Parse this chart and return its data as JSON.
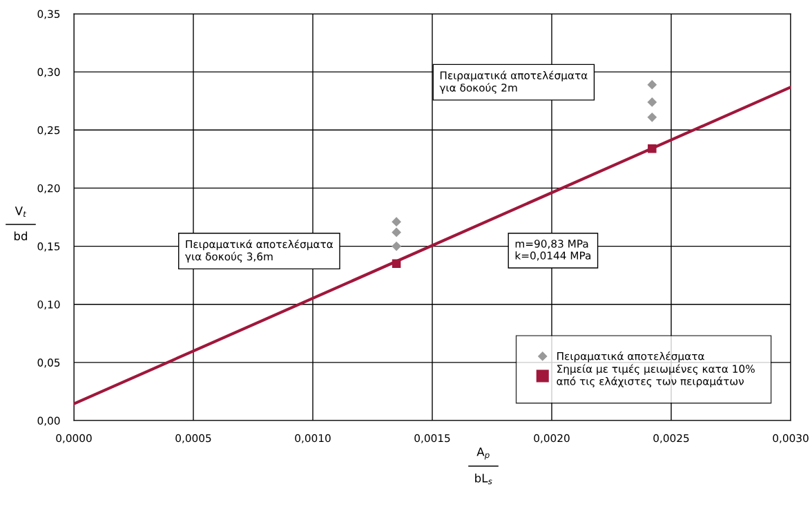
{
  "chart_data": {
    "type": "scatter",
    "xlabel": "A$_{p}$\nbL$_{s}$",
    "ylabel": "V$_{t}$\nbd",
    "xlim": [
      0,
      0.003
    ],
    "ylim": [
      0,
      0.35
    ],
    "xticks": [
      {
        "value": 0,
        "label": "0,0000"
      },
      {
        "value": 0.0005,
        "label": "0,0005"
      },
      {
        "value": 0.001,
        "label": "0,0010"
      },
      {
        "value": 0.0015,
        "label": "0,0015"
      },
      {
        "value": 0.002,
        "label": "0,0020"
      },
      {
        "value": 0.0025,
        "label": "0,0025"
      },
      {
        "value": 0.003,
        "label": "0,0030"
      }
    ],
    "yticks": [
      {
        "value": 0,
        "label": "0,00"
      },
      {
        "value": 0.05,
        "label": "0,05"
      },
      {
        "value": 0.1,
        "label": "0,10"
      },
      {
        "value": 0.15,
        "label": "0,15"
      },
      {
        "value": 0.2,
        "label": "0,20"
      },
      {
        "value": 0.25,
        "label": "0,25"
      },
      {
        "value": 0.3,
        "label": "0,30"
      },
      {
        "value": 0.35,
        "label": "0,35"
      }
    ],
    "grid": true,
    "legend": "bottom right",
    "series": [
      {
        "type": "line",
        "color": "#a0173b",
        "x": [
          0,
          0.003
        ],
        "values": [
          0.0144,
          0.2869
        ],
        "marker": "none"
      },
      {
        "name": "Πειραματικά αποτελέσματα",
        "color": "#999999",
        "marker": "diamond",
        "x": [
          0.00135,
          0.00135,
          0.00135,
          0.00242,
          0.00242,
          0.00242
        ],
        "values": [
          0.171,
          0.162,
          0.15,
          0.289,
          0.274,
          0.261
        ]
      },
      {
        "name": "Σημεία με τιμές μειωμένες κατα 10%\nαπό τις ελάχιστες των πειραμάτων",
        "color": "#a0173b",
        "marker": "square",
        "x": [
          0.00135,
          0.00242
        ],
        "values": [
          0.135,
          0.234
        ]
      }
    ],
    "annotations": [
      "Πειραματικά αποτελέσματα\nγια δοκούς 2m",
      "Πειραματικά αποτελέσματα\nγια δοκούς 3,6m",
      "m=90,83 MPa\nk=0,0144 MPa"
    ]
  }
}
